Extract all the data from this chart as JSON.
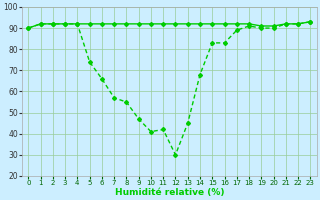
{
  "x": [
    0,
    1,
    2,
    3,
    4,
    5,
    6,
    7,
    8,
    9,
    10,
    11,
    12,
    13,
    14,
    15,
    16,
    17,
    18,
    19,
    20,
    21,
    22,
    23
  ],
  "y_main": [
    90,
    92,
    92,
    92,
    92,
    92,
    92,
    92,
    92,
    92,
    92,
    92,
    92,
    92,
    92,
    92,
    92,
    92,
    92,
    91,
    91,
    92,
    92,
    93
  ],
  "y_var": [
    90,
    92,
    92,
    92,
    92,
    74,
    66,
    57,
    55,
    47,
    41,
    42,
    30,
    45,
    68,
    83,
    83,
    89,
    91,
    90,
    90,
    92,
    92,
    93
  ],
  "line_color": "#00cc00",
  "bg_color": "#cceeff",
  "grid_color": "#99cc99",
  "xlabel": "Humidité relative (%)",
  "ylim": [
    20,
    100
  ],
  "xlim": [
    -0.5,
    23.5
  ],
  "yticks": [
    20,
    30,
    40,
    50,
    60,
    70,
    80,
    90,
    100
  ],
  "xticks": [
    0,
    1,
    2,
    3,
    4,
    5,
    6,
    7,
    8,
    9,
    10,
    11,
    12,
    13,
    14,
    15,
    16,
    17,
    18,
    19,
    20,
    21,
    22,
    23
  ]
}
